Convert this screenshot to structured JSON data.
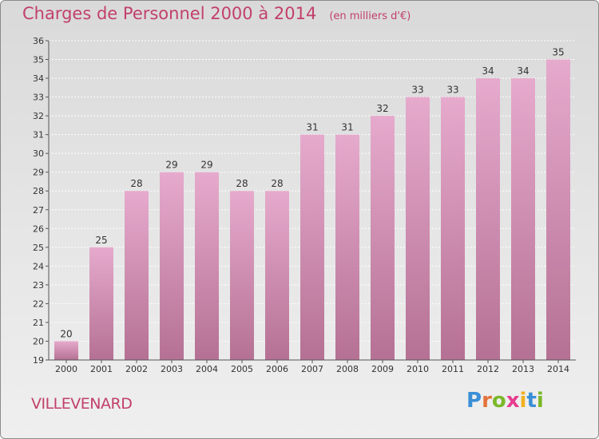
{
  "header": {
    "title": "Charges de Personnel 2000 à 2014",
    "subtitle": "(en milliers d'€)"
  },
  "footer": {
    "place": "VILLEVENARD",
    "logo": "Proxiti"
  },
  "colors": {
    "title": "#c2406a",
    "bar_top": "#e6aacd",
    "bar_bottom": "#b57194",
    "axis": "#555555"
  },
  "chart_data": {
    "type": "bar",
    "title": "Charges de Personnel 2000 à 2014",
    "subtitle": "(en milliers d'€)",
    "categories": [
      "2000",
      "2001",
      "2002",
      "2003",
      "2004",
      "2005",
      "2006",
      "2007",
      "2008",
      "2009",
      "2010",
      "2011",
      "2012",
      "2013",
      "2014"
    ],
    "values": [
      20,
      25,
      28,
      29,
      29,
      28,
      28,
      31,
      31,
      32,
      33,
      33,
      34,
      34,
      35
    ],
    "ylim": [
      19,
      36
    ],
    "yticks": [
      19,
      20,
      21,
      22,
      23,
      24,
      25,
      26,
      27,
      28,
      29,
      30,
      31,
      32,
      33,
      34,
      35,
      36
    ],
    "grid": true,
    "data_labels": true
  }
}
